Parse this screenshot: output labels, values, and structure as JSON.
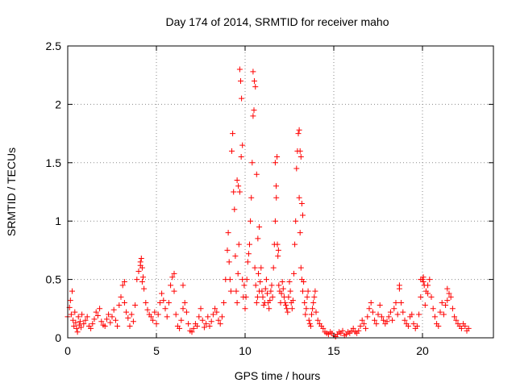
{
  "chart_data": {
    "type": "scatter",
    "title": "Day 174 of 2014, SRMTID for receiver maho",
    "xlabel": "GPS time / hours",
    "ylabel": "SRMTID / TECUs",
    "xlim": [
      0,
      24
    ],
    "ylim": [
      0,
      2.5
    ],
    "x_ticks": [
      0,
      5,
      10,
      15,
      20
    ],
    "y_ticks": [
      0,
      0.5,
      1,
      1.5,
      2,
      2.5
    ],
    "y_tick_labels": [
      "0",
      "0.5",
      "1",
      "1.5",
      "2",
      "2.5"
    ],
    "grid": true,
    "marker": "plus",
    "series": [
      {
        "name": "SRMTID",
        "color": "#ff0000",
        "x": [
          0.0,
          0.1,
          0.15,
          0.2,
          0.25,
          0.3,
          0.35,
          0.4,
          0.45,
          0.5,
          0.55,
          0.6,
          0.65,
          0.7,
          0.75,
          0.8,
          0.9,
          1.0,
          1.1,
          1.2,
          1.3,
          1.4,
          1.5,
          1.6,
          1.7,
          1.8,
          1.9,
          2.0,
          2.1,
          2.2,
          2.3,
          2.4,
          2.5,
          2.6,
          2.7,
          2.8,
          2.9,
          3.0,
          3.1,
          3.2,
          3.3,
          3.4,
          3.5,
          3.6,
          3.7,
          3.8,
          3.9,
          4.0,
          4.1,
          4.15,
          4.2,
          4.25,
          4.3,
          4.4,
          4.5,
          4.6,
          4.7,
          4.8,
          4.9,
          5.0,
          5.1,
          5.2,
          5.3,
          5.4,
          5.5,
          5.6,
          5.7,
          5.8,
          5.9,
          6.0,
          6.1,
          6.2,
          6.3,
          6.4,
          6.5,
          6.6,
          6.7,
          6.8,
          6.9,
          7.0,
          7.1,
          7.2,
          7.3,
          7.4,
          7.5,
          7.6,
          7.7,
          7.8,
          7.9,
          8.0,
          8.1,
          8.2,
          8.3,
          8.4,
          8.5,
          8.6,
          8.7,
          8.8,
          8.9,
          9.0,
          9.05,
          9.1,
          9.15,
          9.2,
          9.25,
          9.3,
          9.35,
          9.4,
          9.45,
          9.5,
          9.55,
          9.6,
          9.65,
          9.7,
          9.75,
          9.8,
          9.85,
          9.9,
          9.95,
          10.0,
          10.05,
          10.1,
          10.15,
          10.2,
          10.25,
          10.3,
          10.35,
          10.4,
          10.45,
          10.5,
          10.55,
          10.6,
          10.65,
          10.7,
          10.75,
          10.8,
          10.85,
          10.9,
          10.95,
          11.0,
          11.05,
          11.1,
          11.15,
          11.2,
          11.25,
          11.3,
          11.35,
          11.4,
          11.45,
          11.5,
          11.55,
          11.6,
          11.65,
          11.7,
          11.75,
          11.8,
          11.85,
          11.9,
          11.95,
          12.0,
          12.05,
          12.1,
          12.15,
          12.2,
          12.25,
          12.3,
          12.35,
          12.4,
          12.45,
          12.5,
          12.55,
          12.6,
          12.65,
          12.7,
          12.75,
          12.8,
          12.85,
          12.9,
          12.95,
          13.0,
          13.05,
          13.1,
          13.15,
          13.2,
          13.25,
          13.3,
          13.35,
          13.4,
          13.45,
          13.5,
          13.55,
          13.6,
          13.65,
          13.7,
          13.75,
          13.8,
          13.85,
          13.9,
          13.95,
          14.0,
          14.1,
          14.2,
          14.3,
          14.4,
          14.5,
          14.6,
          14.7,
          14.8,
          14.9,
          15.0,
          15.1,
          15.2,
          15.3,
          15.4,
          15.5,
          15.6,
          15.7,
          15.8,
          15.9,
          16.0,
          16.1,
          16.2,
          16.3,
          16.4,
          16.5,
          16.6,
          16.7,
          16.8,
          16.9,
          17.0,
          17.1,
          17.2,
          17.3,
          17.4,
          17.5,
          17.6,
          17.7,
          17.8,
          17.9,
          18.0,
          18.1,
          18.2,
          18.3,
          18.4,
          18.5,
          18.6,
          18.7,
          18.8,
          18.9,
          19.0,
          19.1,
          19.2,
          19.3,
          19.4,
          19.5,
          19.6,
          19.7,
          19.8,
          19.9,
          20.0,
          20.05,
          20.1,
          20.15,
          20.2,
          20.3,
          20.4,
          20.5,
          20.6,
          20.7,
          20.8,
          20.9,
          21.0,
          21.1,
          21.2,
          21.3,
          21.4,
          21.5,
          21.6,
          21.7,
          21.8,
          21.9,
          22.0,
          22.1,
          22.2,
          22.3,
          22.4,
          22.5,
          22.6,
          9.55,
          9.62,
          9.7,
          9.78,
          9.85,
          10.45,
          10.52,
          10.58,
          10.65,
          10.72,
          10.8,
          11.7,
          11.76,
          11.82,
          11.88,
          13.05,
          13.1,
          13.15,
          13.2,
          13.25,
          4.1,
          4.2,
          6.0,
          6.5,
          3.2,
          18.7,
          19.9,
          20.05,
          20.3,
          21.4
        ],
        "y": [
          0.18,
          0.26,
          0.32,
          0.2,
          0.4,
          0.15,
          0.1,
          0.22,
          0.13,
          0.08,
          0.05,
          0.18,
          0.11,
          0.14,
          0.09,
          0.2,
          0.12,
          0.15,
          0.18,
          0.1,
          0.08,
          0.12,
          0.16,
          0.22,
          0.19,
          0.25,
          0.14,
          0.11,
          0.1,
          0.16,
          0.2,
          0.13,
          0.18,
          0.24,
          0.15,
          0.1,
          0.28,
          0.35,
          0.45,
          0.3,
          0.22,
          0.17,
          0.1,
          0.2,
          0.14,
          0.28,
          0.5,
          0.57,
          0.65,
          0.68,
          0.6,
          0.52,
          0.42,
          0.3,
          0.24,
          0.2,
          0.18,
          0.15,
          0.22,
          0.12,
          0.2,
          0.3,
          0.38,
          0.32,
          0.25,
          0.18,
          0.3,
          0.45,
          0.52,
          0.4,
          0.2,
          0.1,
          0.08,
          0.15,
          0.25,
          0.3,
          0.22,
          0.12,
          0.06,
          0.05,
          0.08,
          0.12,
          0.1,
          0.18,
          0.25,
          0.15,
          0.09,
          0.12,
          0.18,
          0.1,
          0.14,
          0.2,
          0.25,
          0.22,
          0.15,
          0.12,
          0.18,
          0.3,
          0.5,
          0.75,
          0.9,
          0.65,
          0.5,
          0.4,
          1.6,
          1.75,
          1.25,
          1.1,
          0.7,
          0.4,
          0.3,
          0.55,
          0.8,
          2.3,
          2.2,
          2.05,
          0.5,
          0.35,
          0.45,
          0.25,
          0.35,
          0.5,
          0.65,
          0.72,
          0.8,
          1.0,
          1.2,
          1.5,
          1.9,
          1.95,
          0.6,
          0.45,
          0.3,
          0.35,
          0.55,
          0.4,
          0.48,
          0.6,
          0.4,
          0.35,
          0.28,
          0.3,
          0.42,
          0.5,
          0.38,
          0.3,
          0.25,
          0.32,
          0.4,
          0.45,
          0.35,
          0.6,
          0.8,
          1.0,
          1.3,
          1.55,
          0.7,
          0.45,
          0.4,
          0.3,
          0.38,
          0.48,
          0.42,
          0.35,
          0.3,
          0.28,
          0.25,
          0.22,
          0.35,
          0.48,
          0.4,
          0.3,
          0.25,
          0.32,
          0.55,
          0.8,
          1.0,
          1.45,
          1.6,
          1.75,
          1.2,
          0.9,
          0.6,
          0.5,
          0.4,
          0.48,
          0.3,
          0.2,
          0.25,
          0.35,
          0.4,
          0.15,
          0.12,
          0.1,
          0.2,
          0.25,
          0.3,
          0.35,
          0.4,
          0.22,
          0.15,
          0.12,
          0.1,
          0.08,
          0.05,
          0.04,
          0.03,
          0.05,
          0.04,
          0.02,
          0.01,
          0.03,
          0.05,
          0.04,
          0.06,
          0.02,
          0.03,
          0.05,
          0.04,
          0.06,
          0.08,
          0.05,
          0.04,
          0.06,
          0.1,
          0.15,
          0.12,
          0.08,
          0.18,
          0.25,
          0.3,
          0.22,
          0.15,
          0.12,
          0.2,
          0.28,
          0.18,
          0.15,
          0.12,
          0.14,
          0.18,
          0.22,
          0.15,
          0.25,
          0.3,
          0.2,
          0.45,
          0.3,
          0.22,
          0.15,
          0.12,
          0.1,
          0.18,
          0.2,
          0.12,
          0.08,
          0.1,
          0.2,
          0.35,
          0.5,
          0.52,
          0.45,
          0.28,
          0.4,
          0.38,
          0.5,
          0.35,
          0.25,
          0.18,
          0.12,
          0.1,
          0.22,
          0.3,
          0.2,
          0.28,
          0.32,
          0.38,
          0.35,
          0.25,
          0.18,
          0.15,
          0.12,
          0.1,
          0.08,
          0.12,
          0.1,
          0.06,
          0.08,
          1.35,
          1.3,
          1.25,
          1.55,
          1.65,
          2.28,
          2.2,
          2.15,
          1.4,
          0.85,
          0.95,
          1.5,
          1.2,
          0.8,
          0.75,
          1.78,
          1.6,
          1.55,
          1.15,
          1.05,
          0.62,
          0.48,
          0.55,
          0.45,
          0.48,
          0.42,
          0.5,
          0.48,
          0.45,
          0.42
        ]
      }
    ]
  }
}
